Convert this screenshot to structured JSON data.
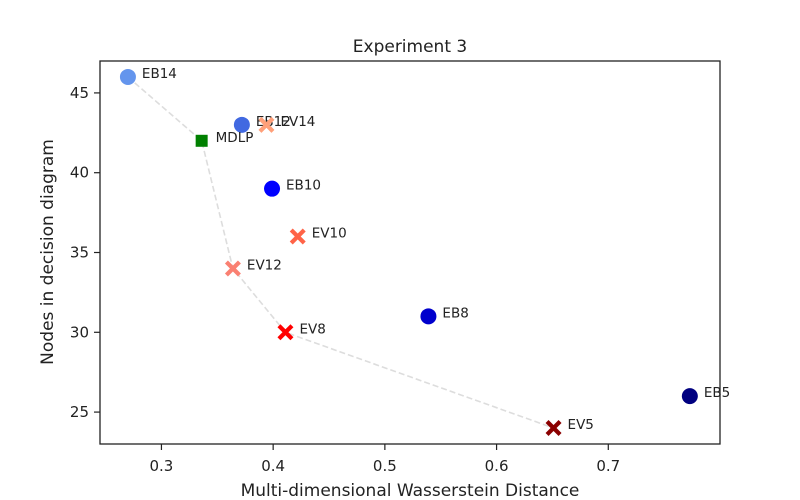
{
  "chart_data": {
    "type": "scatter",
    "title": "Experiment 3",
    "xlabel": "Multi-dimensional Wasserstein Distance",
    "ylabel": "Nodes in decision diagram",
    "xlim": [
      0.245,
      0.8
    ],
    "ylim": [
      23,
      47
    ],
    "xticks": [
      "0.3",
      "0.4",
      "0.5",
      "0.6",
      "0.7"
    ],
    "yticks": [
      "25",
      "30",
      "35",
      "40",
      "45"
    ],
    "grid": false,
    "points": [
      {
        "label": "EB14",
        "x": 0.27,
        "y": 46,
        "marker": "circle",
        "color": "#6495ED"
      },
      {
        "label": "EB12",
        "x": 0.372,
        "y": 43,
        "marker": "circle",
        "color": "#4169E1"
      },
      {
        "label": "EB10",
        "x": 0.399,
        "y": 39,
        "marker": "circle",
        "color": "#0000FF"
      },
      {
        "label": "EB8",
        "x": 0.539,
        "y": 31,
        "marker": "circle",
        "color": "#0000CD"
      },
      {
        "label": "EB5",
        "x": 0.773,
        "y": 26,
        "marker": "circle",
        "color": "#000080"
      },
      {
        "label": "EV14",
        "x": 0.394,
        "y": 43,
        "marker": "x",
        "color": "#FFA07A"
      },
      {
        "label": "EV12",
        "x": 0.364,
        "y": 34,
        "marker": "x",
        "color": "#FA8072"
      },
      {
        "label": "EV10",
        "x": 0.422,
        "y": 36,
        "marker": "x",
        "color": "#FF6347"
      },
      {
        "label": "EV8",
        "x": 0.411,
        "y": 30,
        "marker": "x",
        "color": "#FF0000"
      },
      {
        "label": "EV5",
        "x": 0.651,
        "y": 24,
        "marker": "x",
        "color": "#8B0000"
      },
      {
        "label": "MDLP",
        "x": 0.336,
        "y": 42,
        "marker": "square",
        "color": "#008000"
      }
    ],
    "pareto_front": {
      "style": "dashed",
      "color": "#dddddd",
      "x": [
        0.27,
        0.336,
        0.364,
        0.411,
        0.651
      ],
      "y": [
        46,
        42,
        34,
        30,
        24
      ]
    }
  }
}
